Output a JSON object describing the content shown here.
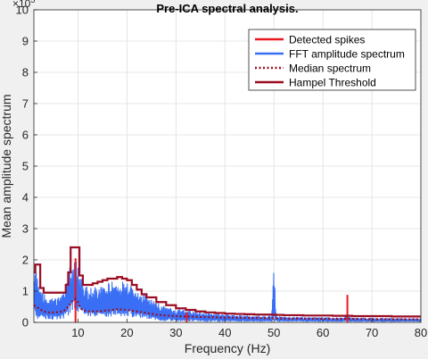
{
  "chart_data": {
    "type": "line",
    "title": "Pre-ICA spectral analysis.",
    "xlabel": "Frequency (Hz)",
    "ylabel": "Mean amplitude spectrum",
    "y_exponent": "×10",
    "y_exponent_power": "5",
    "xlim": [
      1,
      80
    ],
    "ylim": [
      0,
      10
    ],
    "x_ticks": [
      10,
      20,
      30,
      40,
      50,
      60,
      70,
      80
    ],
    "y_ticks": [
      0,
      1,
      2,
      3,
      4,
      5,
      6,
      7,
      8,
      9,
      10
    ],
    "grid": true,
    "legend_position": "top-right",
    "series": [
      {
        "name": "Detected spikes",
        "color": "#e8191e",
        "style": "solid",
        "x": [
          9.5,
          32.2,
          65.0
        ],
        "values": [
          2.05,
          0.32,
          0.88
        ]
      },
      {
        "name": "FFT amplitude spectrum",
        "color": "#3a6ff5",
        "style": "solid",
        "envelope_x": [
          1,
          1.5,
          2,
          3,
          4,
          5,
          6,
          7,
          7.5,
          8,
          8.5,
          9,
          9.5,
          10,
          10.5,
          11,
          12,
          13,
          14,
          15,
          16,
          17,
          18,
          19,
          20,
          21,
          22,
          23,
          24,
          25,
          26,
          27,
          28,
          29,
          30,
          32,
          34,
          36,
          38,
          40,
          42,
          44,
          46,
          48,
          49.5,
          49.9,
          50,
          50.1,
          50.5,
          52,
          55,
          58,
          60,
          62,
          64,
          65,
          66,
          68,
          70,
          72,
          74,
          76,
          78,
          80
        ],
        "envelope_high": [
          2.2,
          1.8,
          1.1,
          0.9,
          0.85,
          0.8,
          0.8,
          0.9,
          1.1,
          1.5,
          1.9,
          2.0,
          2.05,
          1.8,
          1.5,
          1.3,
          1.1,
          1.1,
          1.15,
          1.2,
          1.25,
          1.3,
          1.35,
          1.35,
          1.3,
          1.2,
          1.1,
          1.0,
          0.85,
          0.75,
          0.65,
          0.55,
          0.5,
          0.45,
          0.42,
          0.38,
          0.34,
          0.3,
          0.28,
          0.26,
          0.24,
          0.22,
          0.2,
          0.2,
          0.2,
          1.4,
          2.05,
          1.4,
          0.2,
          0.18,
          0.17,
          0.16,
          0.16,
          0.15,
          0.15,
          0.2,
          0.15,
          0.14,
          0.14,
          0.13,
          0.13,
          0.12,
          0.12,
          0.12
        ],
        "envelope_low": [
          0.2,
          0.15,
          0.1,
          0.1,
          0.1,
          0.1,
          0.1,
          0.12,
          0.15,
          0.2,
          0.3,
          0.35,
          0.4,
          0.35,
          0.3,
          0.25,
          0.2,
          0.18,
          0.18,
          0.18,
          0.18,
          0.2,
          0.2,
          0.2,
          0.2,
          0.18,
          0.15,
          0.12,
          0.1,
          0.08,
          0.07,
          0.06,
          0.05,
          0.05,
          0.04,
          0.04,
          0.04,
          0.03,
          0.03,
          0.03,
          0.03,
          0.03,
          0.03,
          0.03,
          0.03,
          0.03,
          0.03,
          0.03,
          0.03,
          0.03,
          0.03,
          0.03,
          0.03,
          0.03,
          0.03,
          0.03,
          0.03,
          0.03,
          0.03,
          0.03,
          0.03,
          0.03,
          0.03,
          0.03
        ]
      },
      {
        "name": "Median spectrum",
        "color": "#9b0e22",
        "style": "dotted",
        "x": [
          1,
          2,
          3,
          4,
          5,
          6,
          7,
          8,
          8.5,
          9,
          9.5,
          10,
          10.5,
          11,
          12,
          14,
          16,
          18,
          20,
          22,
          24,
          26,
          28,
          30,
          34,
          38,
          42,
          46,
          50,
          54,
          58,
          62,
          66,
          70,
          74,
          78,
          80
        ],
        "values": [
          0.55,
          0.45,
          0.35,
          0.32,
          0.32,
          0.33,
          0.35,
          0.5,
          0.6,
          0.72,
          0.75,
          0.65,
          0.45,
          0.4,
          0.35,
          0.35,
          0.38,
          0.42,
          0.4,
          0.35,
          0.3,
          0.25,
          0.22,
          0.2,
          0.18,
          0.16,
          0.15,
          0.14,
          0.13,
          0.12,
          0.12,
          0.11,
          0.11,
          0.1,
          0.1,
          0.1,
          0.1
        ]
      },
      {
        "name": "Hampel Threshold",
        "color": "#9b0e22",
        "style": "solid",
        "x": [
          1,
          1.3,
          2,
          2.3,
          3,
          4,
          5,
          6,
          7,
          7.5,
          8,
          8.5,
          9,
          10,
          10.3,
          11,
          12,
          13,
          14,
          15,
          16,
          17,
          18,
          19,
          20,
          21,
          22,
          23,
          24,
          26,
          28,
          30,
          32,
          34,
          36,
          38,
          40,
          42,
          44,
          46,
          48,
          50,
          52,
          54,
          56,
          58,
          60,
          62,
          64,
          66,
          68,
          70,
          72,
          74,
          76,
          78,
          80
        ],
        "values": [
          1.6,
          1.85,
          1.85,
          1.1,
          0.95,
          0.95,
          0.95,
          0.95,
          0.95,
          1.2,
          1.6,
          2.4,
          2.4,
          2.4,
          1.5,
          1.2,
          1.2,
          1.25,
          1.3,
          1.35,
          1.4,
          1.4,
          1.45,
          1.4,
          1.35,
          1.2,
          1.05,
          0.9,
          0.8,
          0.65,
          0.55,
          0.45,
          0.4,
          0.35,
          0.32,
          0.3,
          0.28,
          0.27,
          0.26,
          0.25,
          0.25,
          0.24,
          0.23,
          0.23,
          0.22,
          0.22,
          0.22,
          0.21,
          0.21,
          0.2,
          0.2,
          0.2,
          0.2,
          0.19,
          0.19,
          0.19,
          0.19
        ]
      }
    ]
  }
}
